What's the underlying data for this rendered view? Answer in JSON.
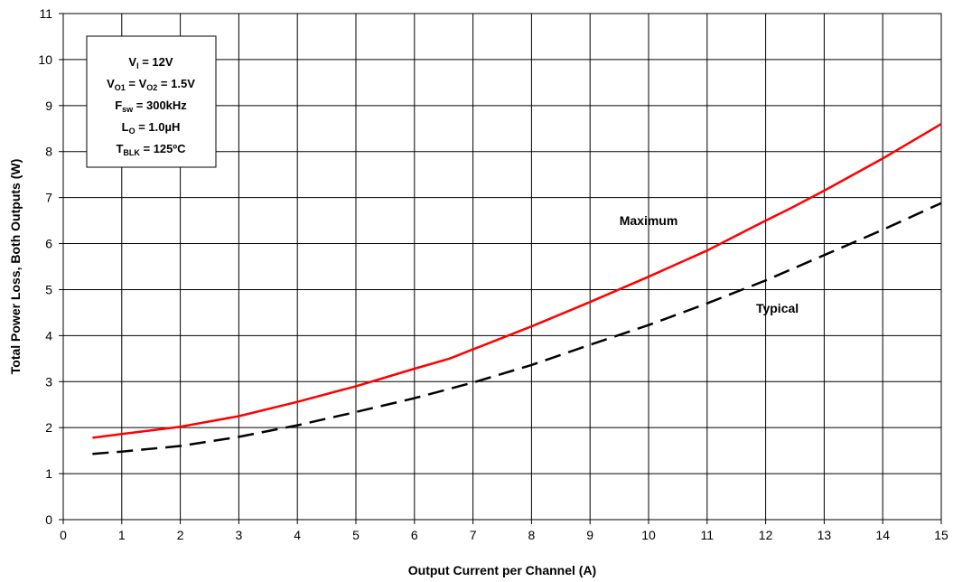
{
  "chart_data": {
    "type": "line",
    "title": "",
    "xlabel": "Output Current per Channel (A)",
    "ylabel": "Total Power Loss, Both Outputs (W)",
    "xlim": [
      0,
      15
    ],
    "ylim": [
      0,
      11
    ],
    "xticks": [
      "0",
      "1",
      "2",
      "3",
      "4",
      "5",
      "6",
      "7",
      "8",
      "9",
      "10",
      "11",
      "12",
      "13",
      "14",
      "15"
    ],
    "yticks": [
      "0",
      "1",
      "2",
      "3",
      "4",
      "5",
      "6",
      "7",
      "8",
      "9",
      "10",
      "11"
    ],
    "grid": true,
    "series": [
      {
        "name": "Maximum",
        "color": "#ff0000",
        "dash": "solid",
        "x": [
          0.5,
          1,
          2,
          3,
          4,
          5,
          6,
          6.6,
          7,
          8,
          9,
          10,
          11,
          12,
          12.4,
          13,
          14,
          15
        ],
        "y": [
          1.78,
          1.86,
          2.02,
          2.25,
          2.56,
          2.9,
          3.28,
          3.5,
          3.7,
          4.2,
          4.73,
          5.28,
          5.85,
          6.5,
          6.75,
          7.15,
          7.85,
          8.6
        ]
      },
      {
        "name": "Typical",
        "color": "#000000",
        "dash": "dashed",
        "x": [
          0.5,
          1,
          2,
          3,
          4,
          5,
          6,
          7,
          8,
          9,
          10,
          11,
          12,
          13,
          14,
          15
        ],
        "y": [
          1.43,
          1.48,
          1.6,
          1.8,
          2.05,
          2.34,
          2.64,
          2.98,
          3.36,
          3.8,
          4.23,
          4.7,
          5.2,
          5.75,
          6.3,
          6.88
        ]
      }
    ],
    "annotations": [
      {
        "text": "Maximum",
        "x": 10.0,
        "y": 6.5
      },
      {
        "text": "Typical",
        "x": 12.2,
        "y": 4.6
      }
    ],
    "conditions": {
      "line1": {
        "main": "V",
        "sub": "I",
        "rest": " = 12V"
      },
      "line2": {
        "main1": "V",
        "sub1": "O1",
        "mid": " = V",
        "sub2": "O2",
        "rest": " = 1.5V"
      },
      "line3": {
        "main": "F",
        "sub": "sw",
        "rest": " = 300kHz"
      },
      "line4": {
        "main": "L",
        "sub": "O",
        "rest": " = 1.0µH"
      },
      "line5": {
        "main": "T",
        "sub": "BLK",
        "rest": " = 125ºC"
      }
    }
  }
}
